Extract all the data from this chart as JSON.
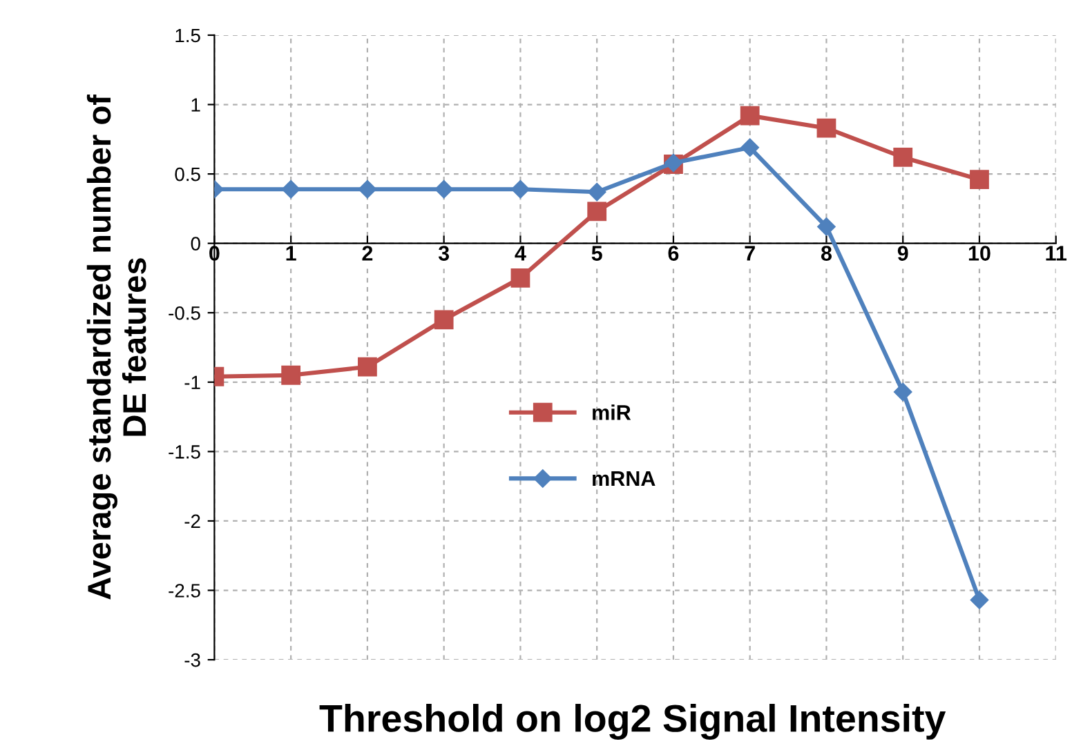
{
  "chart_data": {
    "type": "line",
    "xlabel": "Threshold on log2 Signal Intensity",
    "ylabel": "Average standardized number of\nDE features",
    "x": [
      0,
      1,
      2,
      3,
      4,
      5,
      6,
      7,
      8,
      9,
      10
    ],
    "series": [
      {
        "name": "miR",
        "color": "#c0504d",
        "marker": "square",
        "values": [
          -0.96,
          -0.95,
          -0.89,
          -0.55,
          -0.25,
          0.23,
          0.57,
          0.92,
          0.83,
          0.62,
          0.46
        ]
      },
      {
        "name": "mRNA",
        "color": "#4f81bd",
        "marker": "diamond",
        "values": [
          0.39,
          0.39,
          0.39,
          0.39,
          0.39,
          0.37,
          0.58,
          0.69,
          0.12,
          -1.07,
          -2.57
        ]
      }
    ],
    "xlim": [
      0,
      11
    ],
    "xticks": [
      0,
      1,
      2,
      3,
      4,
      5,
      6,
      7,
      8,
      9,
      10,
      11
    ],
    "ylim": [
      -3,
      1.5
    ],
    "yticks": [
      {
        "value": -3,
        "label": "-3"
      },
      {
        "value": -2.5,
        "label": "-2.5"
      },
      {
        "value": -2,
        "label": "-2"
      },
      {
        "value": -1.5,
        "label": "-1.5"
      },
      {
        "value": -1,
        "label": "-1"
      },
      {
        "value": -0.5,
        "label": "-0.5"
      },
      0,
      0.5,
      1,
      1.5
    ],
    "grid": true,
    "legend": "center",
    "line_style": "solid"
  }
}
